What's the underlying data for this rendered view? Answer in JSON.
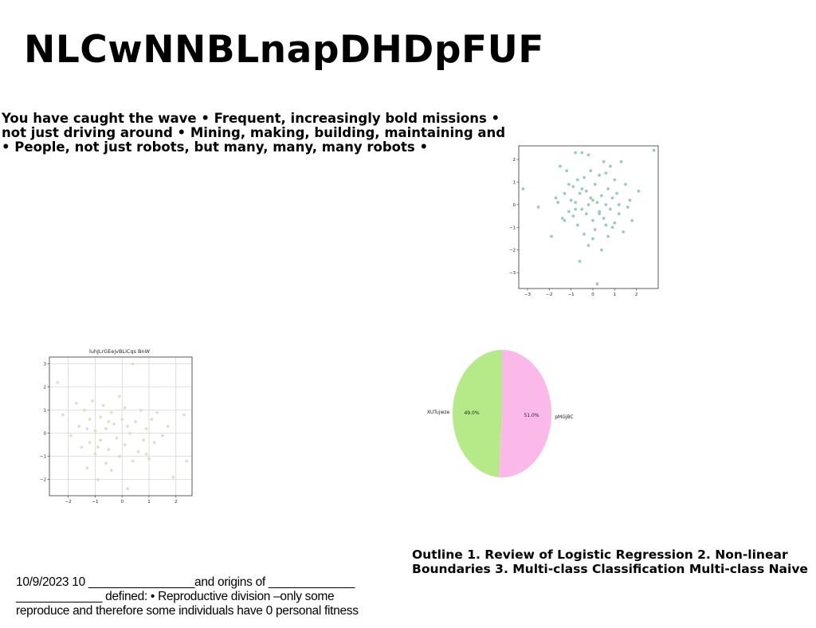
{
  "title": "NLCwNNBLnapDHDpFUF",
  "body_lines": [
    "You have caught the wave • Frequent, increasingly bold missions •",
    "not just driving around • Mining, making, building, maintaining and",
    "• People, not just robots, but many, many, many robots •"
  ],
  "outline_lines": [
    "Outline 1. Review of Logistic Regression 2. Non-linear",
    "Boundaries 3. Multi-class Classification Multi-class Naive"
  ],
  "footer_lines": [
    "10/9/2023 10 ________________and origins of _____________",
    "_____________ defined: • Reproductive division –only some",
    "reproduce and therefore some individuals have 0 personal fitness"
  ],
  "chart_data": [
    {
      "type": "scatter",
      "title": "",
      "color": "#8ec2a9",
      "xlim": [
        -3.4,
        3.0
      ],
      "ylim": [
        -3.7,
        2.6
      ],
      "xticks": [
        -3,
        -2,
        -1,
        0,
        1,
        2
      ],
      "yticks": [
        -3,
        -2,
        -1,
        0,
        1,
        2
      ],
      "grid": false,
      "points": [
        [
          -3.2,
          0.7
        ],
        [
          -2.5,
          -0.1
        ],
        [
          -1.9,
          -1.4
        ],
        [
          -1.7,
          0.3
        ],
        [
          -1.6,
          0.1
        ],
        [
          -1.5,
          1.7
        ],
        [
          -1.4,
          -0.6
        ],
        [
          -1.3,
          0.5
        ],
        [
          -1.2,
          1.5
        ],
        [
          -1.1,
          -0.3
        ],
        [
          -1.0,
          0.2
        ],
        [
          -0.9,
          0.8
        ],
        [
          -0.9,
          -0.5
        ],
        [
          -0.8,
          2.3
        ],
        [
          -0.8,
          0.1
        ],
        [
          -0.7,
          1.1
        ],
        [
          -0.7,
          -0.9
        ],
        [
          -0.6,
          -2.5
        ],
        [
          -0.6,
          0.5
        ],
        [
          -0.5,
          2.3
        ],
        [
          -0.5,
          -0.2
        ],
        [
          -0.4,
          1.2
        ],
        [
          -0.4,
          -1.3
        ],
        [
          -0.3,
          0.6
        ],
        [
          -0.3,
          -0.4
        ],
        [
          -0.2,
          0.0
        ],
        [
          -0.2,
          -1.8
        ],
        [
          -0.1,
          1.5
        ],
        [
          -0.1,
          0.3
        ],
        [
          0.0,
          -0.7
        ],
        [
          0.0,
          -1.5
        ],
        [
          0.1,
          0.9
        ],
        [
          0.1,
          -1.1
        ],
        [
          0.2,
          -3.5
        ],
        [
          0.2,
          0.1
        ],
        [
          0.3,
          -0.3
        ],
        [
          0.3,
          1.3
        ],
        [
          0.4,
          -2.0
        ],
        [
          0.4,
          0.4
        ],
        [
          0.5,
          -0.6
        ],
        [
          0.5,
          1.9
        ],
        [
          0.6,
          0.0
        ],
        [
          0.6,
          -0.9
        ],
        [
          0.7,
          0.7
        ],
        [
          0.7,
          -1.4
        ],
        [
          0.8,
          1.7
        ],
        [
          0.8,
          -0.2
        ],
        [
          0.9,
          0.3
        ],
        [
          1.0,
          -0.8
        ],
        [
          1.0,
          1.1
        ],
        [
          1.1,
          0.5
        ],
        [
          1.2,
          -0.4
        ],
        [
          1.3,
          1.9
        ],
        [
          1.4,
          -1.2
        ],
        [
          1.5,
          0.9
        ],
        [
          1.6,
          -0.1
        ],
        [
          1.7,
          0.2
        ],
        [
          1.8,
          -0.7
        ],
        [
          2.1,
          0.6
        ],
        [
          2.8,
          2.4
        ],
        [
          -1.1,
          0.9
        ],
        [
          -0.2,
          2.2
        ],
        [
          0.9,
          -1.0
        ],
        [
          1.2,
          0.0
        ],
        [
          -0.5,
          0.7
        ],
        [
          0.3,
          -0.4
        ],
        [
          -0.8,
          -0.2
        ],
        [
          0.6,
          1.4
        ],
        [
          -1.3,
          -0.7
        ],
        [
          0.0,
          0.2
        ]
      ]
    },
    {
      "type": "scatter",
      "title": "luhJLrGEejvBLiCqs BnW",
      "color": "#ddd8c0",
      "xlim": [
        -2.7,
        2.6
      ],
      "ylim": [
        -2.7,
        3.3
      ],
      "xticks": [
        -2,
        -1,
        0,
        1,
        2
      ],
      "yticks": [
        -2,
        -1,
        0,
        1,
        2,
        3
      ],
      "grid": true,
      "points": [
        [
          -2.4,
          2.2
        ],
        [
          -2.2,
          0.8
        ],
        [
          -1.9,
          -0.1
        ],
        [
          -1.7,
          1.3
        ],
        [
          -1.6,
          0.3
        ],
        [
          -1.5,
          -0.6
        ],
        [
          -1.4,
          1.0
        ],
        [
          -1.3,
          -1.5
        ],
        [
          -1.2,
          0.6
        ],
        [
          -1.2,
          -0.4
        ],
        [
          -1.1,
          1.4
        ],
        [
          -1.0,
          0.1
        ],
        [
          -1.0,
          -0.9
        ],
        [
          -0.9,
          -2.0
        ],
        [
          -0.8,
          0.7
        ],
        [
          -0.8,
          -0.3
        ],
        [
          -0.7,
          1.2
        ],
        [
          -0.6,
          -1.3
        ],
        [
          -0.6,
          0.2
        ],
        [
          -0.5,
          -0.7
        ],
        [
          -0.4,
          0.9
        ],
        [
          -0.4,
          -1.6
        ],
        [
          -0.3,
          0.4
        ],
        [
          -0.2,
          -0.2
        ],
        [
          -0.1,
          1.6
        ],
        [
          -0.1,
          -1.0
        ],
        [
          0.0,
          0.6
        ],
        [
          0.1,
          -0.5
        ],
        [
          0.1,
          1.1
        ],
        [
          0.2,
          -2.4
        ],
        [
          0.3,
          0.0
        ],
        [
          0.4,
          3.0
        ],
        [
          0.4,
          -1.2
        ],
        [
          0.5,
          0.5
        ],
        [
          0.6,
          -0.8
        ],
        [
          0.7,
          1.0
        ],
        [
          0.8,
          -0.3
        ],
        [
          0.9,
          0.2
        ],
        [
          1.0,
          -1.1
        ],
        [
          1.1,
          0.6
        ],
        [
          1.2,
          -0.4
        ],
        [
          1.3,
          0.9
        ],
        [
          1.5,
          -0.1
        ],
        [
          1.7,
          0.3
        ],
        [
          1.9,
          -1.9
        ],
        [
          2.3,
          0.8
        ],
        [
          2.4,
          -1.2
        ],
        [
          -1.3,
          0.2
        ],
        [
          -0.5,
          0.5
        ],
        [
          0.9,
          -0.9
        ],
        [
          -0.9,
          -0.6
        ],
        [
          0.2,
          0.3
        ]
      ]
    },
    {
      "type": "pie",
      "slices": [
        {
          "label": "XUTujwze",
          "value": 49.0,
          "pct_label": "49.0%",
          "color": "#b6ea88"
        },
        {
          "label": "pMGjBC",
          "value": 51.0,
          "pct_label": "51.0%",
          "color": "#fbb9ea"
        }
      ]
    }
  ]
}
